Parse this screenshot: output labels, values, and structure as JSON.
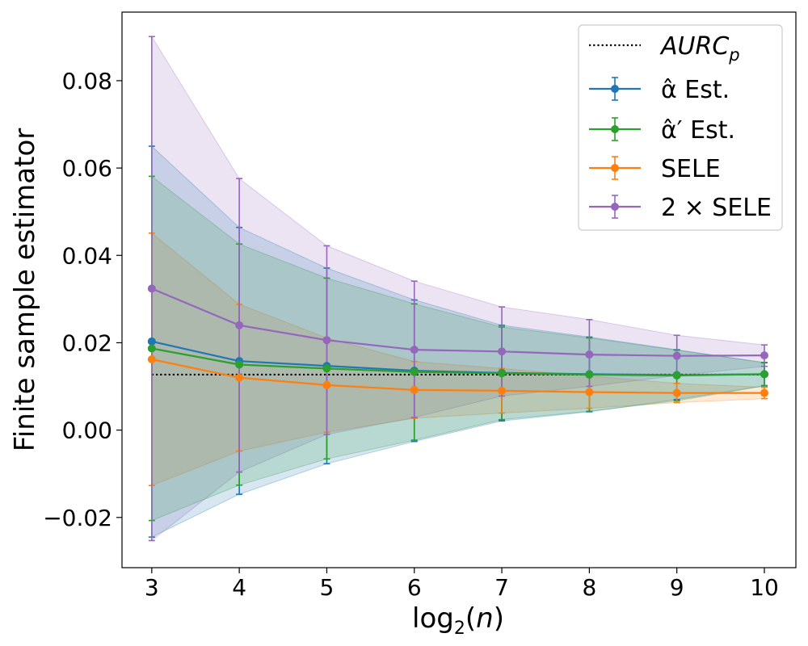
{
  "chart_data": {
    "type": "line",
    "title": "",
    "xlabel": "log₂(n)",
    "ylabel": "Finite sample estimator",
    "x": [
      3,
      4,
      5,
      6,
      7,
      8,
      9,
      10
    ],
    "xticks": [
      "3",
      "4",
      "5",
      "6",
      "7",
      "8",
      "9",
      "10"
    ],
    "yticks": [
      "−0.02",
      "0.00",
      "0.02",
      "0.04",
      "0.06",
      "0.08"
    ],
    "ytick_values": [
      -0.02,
      0.0,
      0.02,
      0.04,
      0.06,
      0.08
    ],
    "xlim": [
      2.66,
      10.36
    ],
    "ylim": [
      -0.0315,
      0.0957
    ],
    "grid": false,
    "legend_position": "top-right",
    "reference_line": {
      "name": "AURC",
      "subscript": "p",
      "value": 0.0127,
      "style": "dotted",
      "color": "#000000"
    },
    "series": [
      {
        "name": "α̂ Est.",
        "color": "#1f77b4",
        "values": [
          0.0203,
          0.0158,
          0.0147,
          0.0136,
          0.0131,
          0.0128,
          0.0126,
          0.0128
        ],
        "lower": [
          -0.0245,
          -0.0147,
          -0.0077,
          -0.0026,
          0.0021,
          0.0042,
          0.007,
          0.0102
        ],
        "upper": [
          0.065,
          0.0464,
          0.0371,
          0.0298,
          0.024,
          0.0213,
          0.0184,
          0.0154
        ]
      },
      {
        "name": "α̂′ Est.",
        "color": "#2ca02c",
        "values": [
          0.0187,
          0.015,
          0.0141,
          0.0133,
          0.013,
          0.0127,
          0.0125,
          0.0128
        ],
        "lower": [
          -0.0207,
          -0.0126,
          -0.0066,
          -0.0023,
          0.0024,
          0.0043,
          0.0067,
          0.0101
        ],
        "upper": [
          0.0581,
          0.0426,
          0.0348,
          0.0289,
          0.0236,
          0.0211,
          0.0183,
          0.0155
        ]
      },
      {
        "name": "SELE",
        "color": "#ff7f0e",
        "values": [
          0.0162,
          0.012,
          0.0103,
          0.0092,
          0.009,
          0.0087,
          0.0085,
          0.0085
        ],
        "lower": [
          -0.0127,
          -0.0048,
          -0.0005,
          0.0027,
          0.0039,
          0.005,
          0.0063,
          0.0072
        ],
        "upper": [
          0.0451,
          0.0288,
          0.0211,
          0.0157,
          0.0141,
          0.0124,
          0.0107,
          0.0098
        ]
      },
      {
        "name": "2 × SELE",
        "color": "#9467bd",
        "values": [
          0.0324,
          0.024,
          0.0206,
          0.0184,
          0.018,
          0.0173,
          0.017,
          0.0171
        ],
        "lower": [
          -0.0253,
          -0.0096,
          -0.001,
          0.0029,
          0.0078,
          0.01,
          0.0125,
          0.0146
        ],
        "upper": [
          0.0901,
          0.0576,
          0.0422,
          0.0341,
          0.0282,
          0.0253,
          0.0217,
          0.0195
        ]
      }
    ]
  }
}
